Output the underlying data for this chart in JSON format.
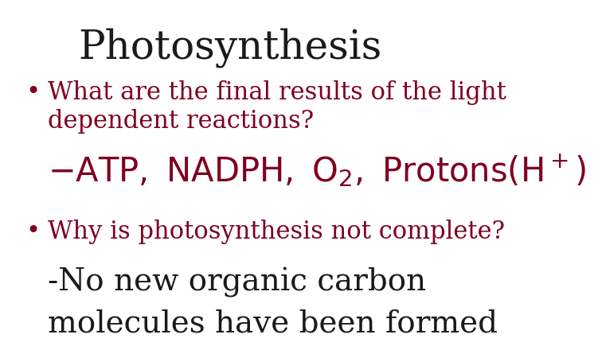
{
  "title": "Photosynthesis",
  "title_color": "#1a1a1a",
  "title_fontsize": 36,
  "bullet_color": "#800020",
  "answer2_color": "#1a1a1a",
  "background_color": "#ffffff",
  "bullet1_text": "What are the final results of the light dependent reactions?",
  "bullet1_fontsize": 22,
  "answer1_str": "$\\mathregular{-ATP,\\ NADPH,\\ O_2,\\ Protons(H^+)}$",
  "answer1_fontsize": 30,
  "bullet2_text": "Why is photosynthesis not complete?",
  "bullet2_fontsize": 22,
  "answer2_line1": "-No new organic carbon",
  "answer2_line2": "molecules have been formed",
  "answer2_fontsize": 28
}
